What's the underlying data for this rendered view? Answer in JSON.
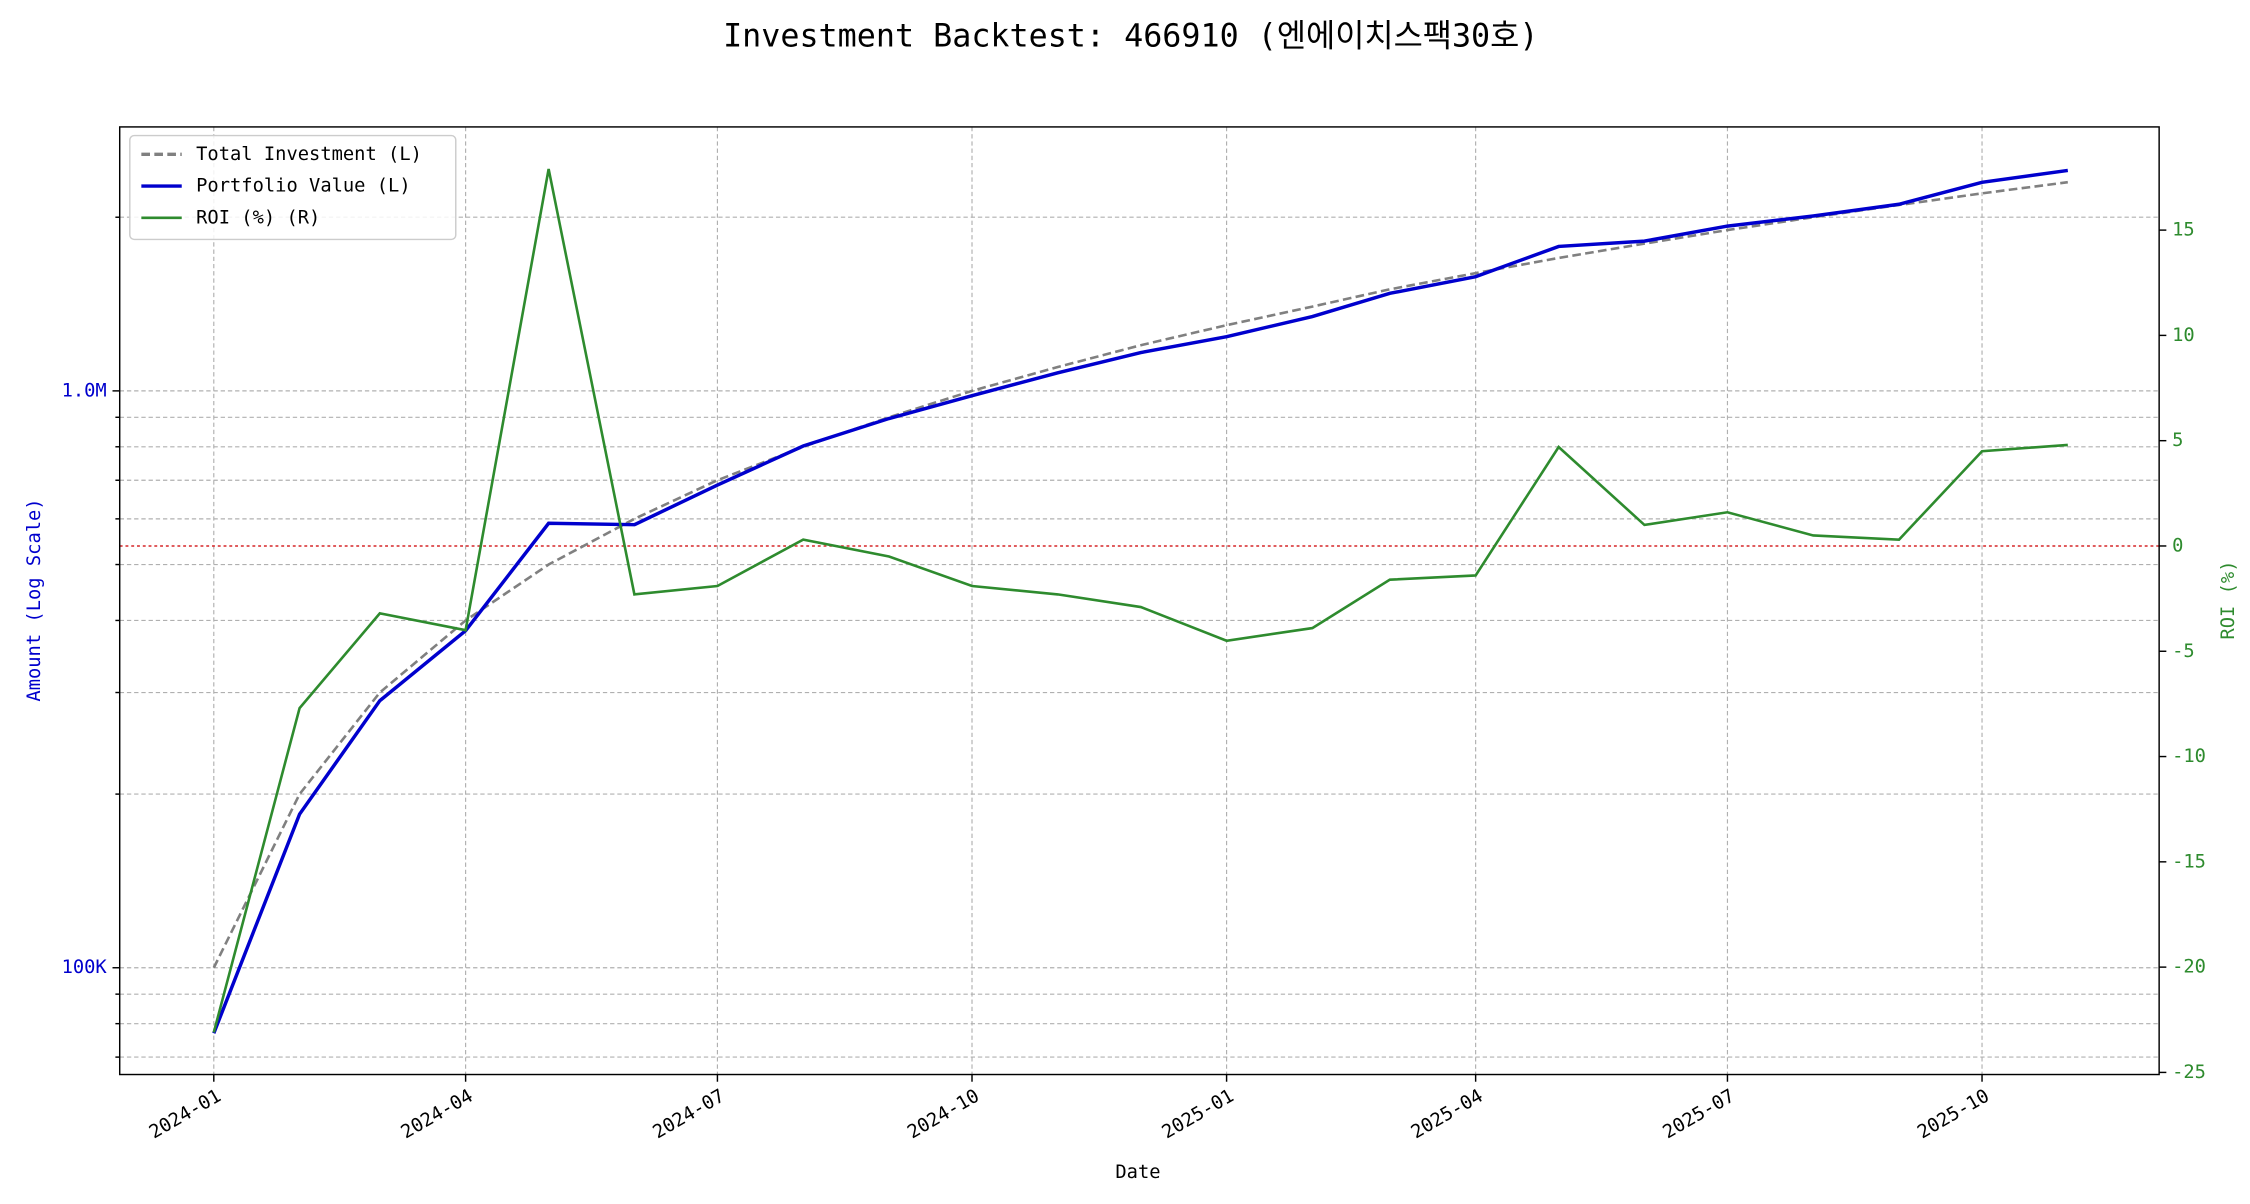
{
  "chart_data": {
    "type": "line",
    "title": "Investment Backtest: 466910 (엔에이치스팩30호)",
    "xlabel": "Date",
    "ylabel": "Amount (Log Scale)",
    "y2label": "ROI (%)",
    "x": [
      "2024-01",
      "2024-02",
      "2024-03",
      "2024-04",
      "2024-05",
      "2024-06",
      "2024-07",
      "2024-08",
      "2024-09",
      "2024-10",
      "2024-11",
      "2024-12",
      "2025-01",
      "2025-02",
      "2025-03",
      "2025-04",
      "2025-05",
      "2025-06",
      "2025-07",
      "2025-08",
      "2025-09",
      "2025-10",
      "2025-11"
    ],
    "xlim": [
      "2023-11-28",
      "2025-12-04"
    ],
    "xticks": [
      "2024-01",
      "2024-04",
      "2024-07",
      "2024-10",
      "2025-01",
      "2025-04",
      "2025-07",
      "2025-10"
    ],
    "yscale": "log",
    "ylim": [
      65300,
      2868000
    ],
    "yticks": [
      {
        "value": 100000,
        "label": "100K"
      },
      {
        "value": 1000000,
        "label": "1.0M"
      }
    ],
    "yminorticks": [
      70000,
      80000,
      90000,
      200000,
      300000,
      400000,
      500000,
      600000,
      700000,
      800000,
      900000,
      2000000
    ],
    "y2lim": [
      -25.1,
      19.9
    ],
    "y2ticks": [
      -25,
      -20,
      -15,
      -10,
      -5,
      0,
      5,
      10,
      15
    ],
    "grid": true,
    "legend": "upper left",
    "hline": {
      "value": 0,
      "axis": "y2",
      "color": "#d62728"
    },
    "series": [
      {
        "name": "Total Investment (L)",
        "color": "#808080",
        "dashed": true,
        "axis": "y",
        "values": [
          100000,
          200000,
          300000,
          400000,
          500000,
          600000,
          700000,
          800000,
          900000,
          1000000,
          1100000,
          1200000,
          1300000,
          1400000,
          1500000,
          1600000,
          1700000,
          1800000,
          1900000,
          2000000,
          2100000,
          2200000,
          2300000
        ]
      },
      {
        "name": "Portfolio Value (L)",
        "color": "#0000cd",
        "axis": "y",
        "values": [
          77000,
          184600,
          290400,
          384000,
          589500,
          586200,
          686700,
          802400,
          895500,
          981000,
          1074700,
          1165200,
          1241500,
          1345400,
          1476000,
          1577600,
          1779900,
          1818000,
          1930400,
          2010000,
          2106300,
          2299000,
          2410400
        ]
      },
      {
        "name": "ROI (%) (R)",
        "color": "#2e8b2e",
        "axis": "y2",
        "values": [
          -23.1,
          -7.7,
          -3.2,
          -4.0,
          17.9,
          -2.3,
          -1.9,
          0.3,
          -0.5,
          -1.9,
          -2.3,
          -2.9,
          -4.5,
          -3.9,
          -1.6,
          -1.4,
          4.7,
          1.0,
          1.6,
          0.5,
          0.3,
          4.5,
          4.8
        ]
      }
    ]
  }
}
